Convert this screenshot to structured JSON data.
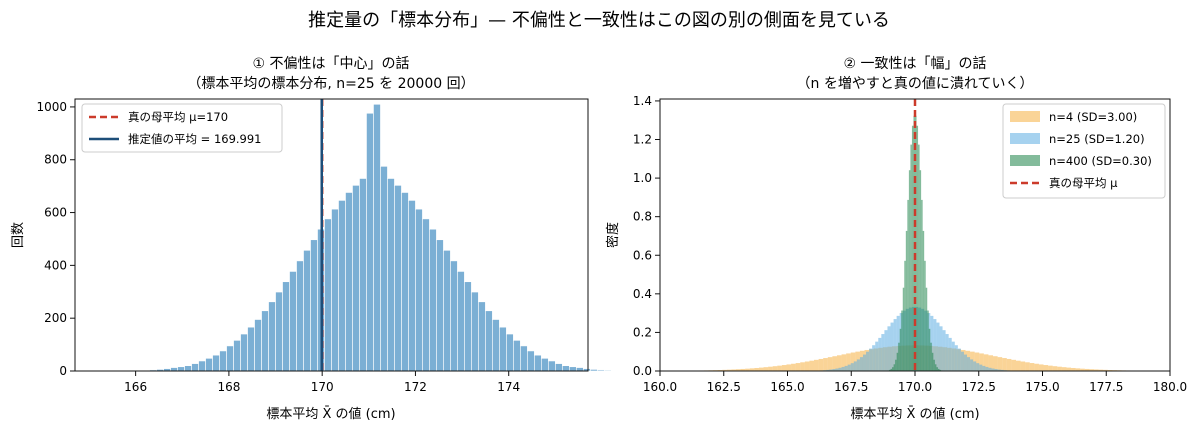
{
  "figure": {
    "suptitle": "推定量の「標本分布」— 不偏性と一致性はこの図の別の側面を見ている"
  },
  "chart_data": [
    {
      "type": "histogram",
      "title_line1": "① 不偏性は「中心」の話",
      "title_line2": "（標本平均の標本分布, n=25 を 20000 回）",
      "xlabel": "標本平均 X̄ の値 (cm)",
      "ylabel": "回数",
      "xlim": [
        164.7,
        175.7
      ],
      "ylim": [
        0,
        1030
      ],
      "xticks": [
        166,
        168,
        170,
        172,
        174
      ],
      "yticks": [
        0,
        200,
        400,
        600,
        800,
        1000
      ],
      "bar_color": "#7bafd4",
      "bin_start": 165.1,
      "bin_width": 0.15,
      "values": [
        1,
        0,
        0,
        1,
        0,
        2,
        1,
        3,
        4,
        6,
        9,
        13,
        16,
        20,
        28,
        38,
        48,
        60,
        76,
        95,
        116,
        140,
        166,
        195,
        228,
        262,
        299,
        338,
        377,
        417,
        457,
        497,
        537,
        576,
        613,
        646,
        676,
        703,
        729,
        976,
        1010,
        775,
        729,
        703,
        676,
        646,
        613,
        576,
        537,
        497,
        457,
        417,
        377,
        338,
        299,
        262,
        228,
        195,
        166,
        140,
        116,
        95,
        76,
        60,
        48,
        38,
        28,
        20,
        16,
        13,
        9,
        6,
        4,
        3,
        1,
        1
      ],
      "lines": [
        {
          "name": "真の母平均 μ=170",
          "x": 170,
          "color": "#cc3b2b",
          "style": "dashed"
        },
        {
          "name": "推定値の平均 = 169.991",
          "x": 169.991,
          "color": "#1d4e79",
          "style": "solid"
        }
      ],
      "legend": "top-left"
    },
    {
      "type": "histogram",
      "title_line1": "② 一致性は「幅」の話",
      "title_line2": "（n を増やすと真の値に潰れていく）",
      "xlabel": "標本平均 X̄ の値 (cm)",
      "ylabel": "密度",
      "xlim": [
        160,
        180
      ],
      "ylim": [
        0,
        1.41
      ],
      "xticks": [
        "160.0",
        "162.5",
        "165.0",
        "167.5",
        "170.0",
        "172.5",
        "175.0",
        "177.5",
        "180.0"
      ],
      "yticks": [
        "0.0",
        "0.2",
        "0.4",
        "0.6",
        "0.8",
        "1.0",
        "1.2",
        "1.4"
      ],
      "mu": 170,
      "series": [
        {
          "name": "n=4  (SD=3.00)",
          "sd": 3.0,
          "color": "#f5b041",
          "opacity": 0.55
        },
        {
          "name": "n=25  (SD=1.20)",
          "sd": 1.2,
          "color": "#5dade2",
          "opacity": 0.55
        },
        {
          "name": "n=400  (SD=0.30)",
          "sd": 0.3,
          "color": "#1e8449",
          "opacity": 0.55
        }
      ],
      "mu_line": {
        "name": "真の母平均 μ",
        "color": "#cc3b2b",
        "style": "dashed"
      },
      "legend": "top-right"
    }
  ]
}
